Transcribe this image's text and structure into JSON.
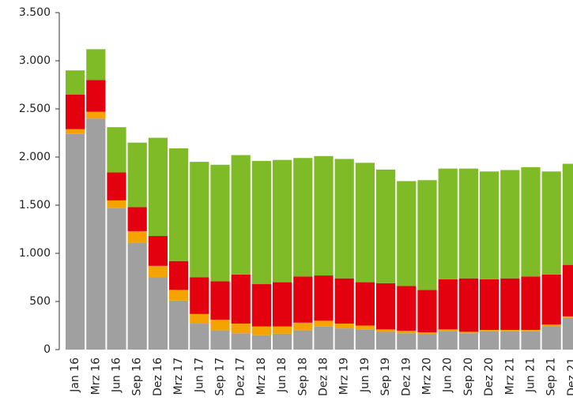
{
  "chart_data": {
    "type": "stacked_bar",
    "categories": [
      "Jan 16",
      "Mrz 16",
      "Jun 16",
      "Sep 16",
      "Dez 16",
      "Mrz 17",
      "Jun 17",
      "Sep 17",
      "Dez 17",
      "Mrz 18",
      "Jun 18",
      "Sep 18",
      "Dez 18",
      "Mrz 19",
      "Jun 19",
      "Sep 19",
      "Dez 19",
      "Mrz 20",
      "Jun 20",
      "Sep 20",
      "Dez 20",
      "Mrz 21",
      "Jun 21",
      "Sep 21",
      "Dez 21"
    ],
    "series": [
      {
        "color": "#a0a0a0",
        "values": [
          2240,
          2400,
          1470,
          1110,
          750,
          510,
          270,
          200,
          170,
          150,
          165,
          200,
          240,
          220,
          210,
          185,
          170,
          160,
          190,
          170,
          190,
          190,
          190,
          245,
          330
        ]
      },
      {
        "color": "#f5a300",
        "values": [
          50,
          70,
          80,
          120,
          120,
          110,
          100,
          110,
          100,
          90,
          75,
          80,
          60,
          50,
          40,
          25,
          25,
          20,
          20,
          15,
          15,
          15,
          15,
          15,
          15
        ]
      },
      {
        "color": "#e3000f",
        "values": [
          360,
          330,
          290,
          250,
          310,
          300,
          380,
          400,
          510,
          440,
          460,
          480,
          470,
          470,
          450,
          480,
          465,
          440,
          520,
          555,
          525,
          535,
          555,
          520,
          535
        ]
      },
      {
        "color": "#7fba27",
        "values": [
          250,
          320,
          470,
          670,
          1020,
          1170,
          1200,
          1210,
          1240,
          1280,
          1270,
          1230,
          1240,
          1240,
          1240,
          1180,
          1090,
          1140,
          1150,
          1140,
          1120,
          1125,
          1135,
          1070,
          1050
        ]
      }
    ],
    "ylim": [
      0,
      3500
    ],
    "yticks": [
      0,
      500,
      {
        "value": 1000,
        "label": "1.000"
      },
      {
        "value": 1500,
        "label": "1.500"
      },
      {
        "value": 2000,
        "label": "2.000"
      },
      {
        "value": 2500,
        "label": "2.500"
      },
      {
        "value": 3000,
        "label": "3.000"
      },
      {
        "value": 3500,
        "label": "3.500"
      }
    ]
  }
}
